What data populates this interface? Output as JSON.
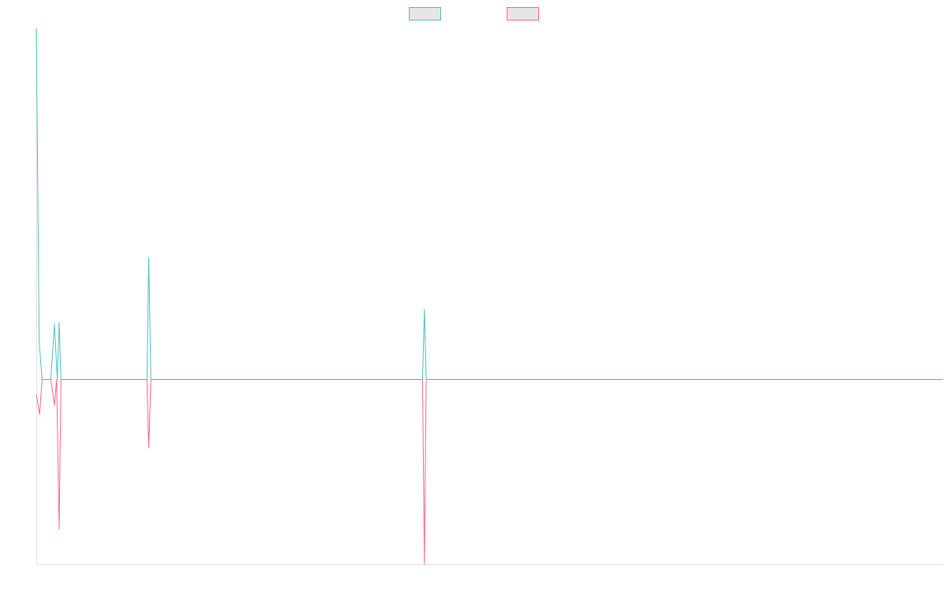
{
  "chart_data": {
    "type": "line",
    "x_range": [
      0,
      250
    ],
    "ylim": [
      -1,
      1.9
    ],
    "zero_line": true,
    "grid": false,
    "legend_position": "top-center",
    "series": [
      {
        "color": "#4bc0c0",
        "points": [
          [
            0,
            1.9
          ],
          [
            0.8,
            0.2
          ],
          [
            1.6,
            0.0
          ],
          [
            4,
            0.0
          ],
          [
            5,
            0.3
          ],
          [
            5.8,
            0.0
          ],
          [
            6.3,
            0.31
          ],
          [
            6.8,
            0.0
          ],
          [
            30.5,
            0.0
          ],
          [
            31,
            0.66
          ],
          [
            31.6,
            0.0
          ],
          [
            106.5,
            0.0
          ],
          [
            107,
            0.38
          ],
          [
            107.5,
            0.0
          ],
          [
            250,
            0.0
          ]
        ]
      },
      {
        "color": "#ff6384",
        "points": [
          [
            0,
            -0.08
          ],
          [
            0.9,
            -0.19
          ],
          [
            1.6,
            0.0
          ],
          [
            4,
            0.0
          ],
          [
            5,
            -0.14
          ],
          [
            5.6,
            0.0
          ],
          [
            6.3,
            -0.81
          ],
          [
            6.8,
            0.0
          ],
          [
            30.5,
            0.0
          ],
          [
            31,
            -0.37
          ],
          [
            31.6,
            0.0
          ],
          [
            106.5,
            0.0
          ],
          [
            107,
            -1.0
          ],
          [
            107.5,
            0.0
          ],
          [
            250,
            0.0
          ]
        ]
      }
    ]
  }
}
